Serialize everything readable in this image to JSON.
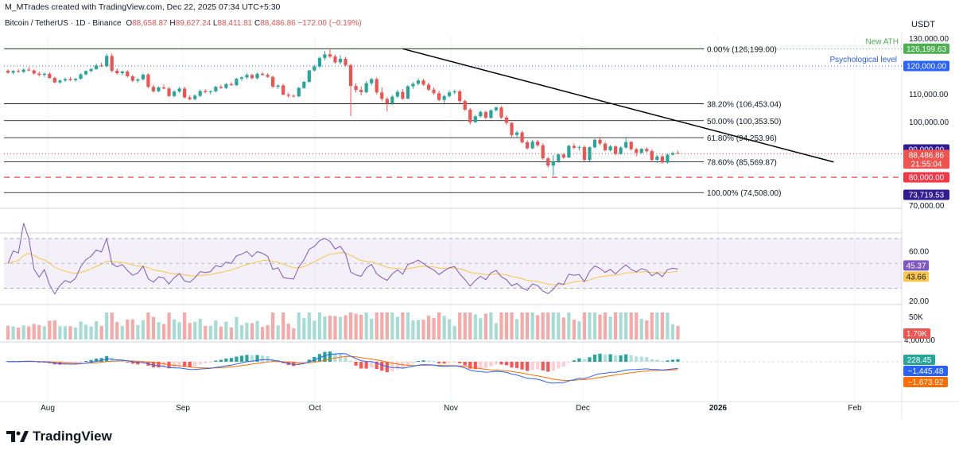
{
  "header": {
    "credit": "M_MTrades created with TradingView.com, Dec 22, 2025 07:34 UTC+5:30",
    "symbol": "Bitcoin / TetherUS · 1D · Binance",
    "ohlc": [
      {
        "k": "O",
        "v": "88,658.87"
      },
      {
        "k": "H",
        "v": "89,627.24"
      },
      {
        "k": "L",
        "v": "88,411.81"
      },
      {
        "k": "C",
        "v": "88,486.86"
      },
      {
        "k": "",
        "v": "−172.00 (−0.19%)"
      }
    ],
    "currency": "USDT"
  },
  "brand": {
    "name": "TradingView",
    "icon": "tradingview-logo-icon"
  },
  "colors": {
    "up": "#26a69a",
    "down": "#ef5350",
    "fib": "#000000",
    "ath": "#4caf50",
    "psych": "#2962ff",
    "red_level": "#f23645",
    "rsi": "#7e57c2",
    "rsi_ma": "#f7c548",
    "macd": "#2962ff",
    "signal": "#ff6d00",
    "vol_up": "#a7dcd5",
    "vol_down": "#f7a9a7",
    "badge_purple": "#311b92"
  },
  "chart_data": {
    "type": "candlestick",
    "price_axis": {
      "min": 70000,
      "max": 130000,
      "ticks": [
        "130,000.00",
        "110,000.00",
        "100,000.00",
        "70,000.00"
      ],
      "unit": "USDT"
    },
    "time_axis": {
      "labels": [
        "Aug",
        "Sep",
        "Oct",
        "Nov",
        "Dec",
        "2026",
        "Feb"
      ],
      "highlighted": "2026"
    },
    "last_close": 88486.86,
    "countdown": "21:55:04",
    "fibonacci": [
      {
        "label": "0.00% (126,199.00)",
        "value": 126199
      },
      {
        "label": "38.20% (106,453.04)",
        "value": 106453.04
      },
      {
        "label": "50.00% (100,353.50)",
        "value": 100353.5
      },
      {
        "label": "61.80% (94,253.96)",
        "value": 94253.96
      },
      {
        "label": "78.60% (85,569.87)",
        "value": 85569.87
      },
      {
        "label": "100.00% (74,508.00)",
        "value": 74508
      }
    ],
    "levels": [
      {
        "name": "New ATH",
        "value": 126199.63,
        "badge": "126,199.63",
        "color": "#4caf50"
      },
      {
        "name": "Psychological level",
        "value": 120000,
        "badge": "120,000.00",
        "color": "#2962ff"
      },
      {
        "name": "",
        "value": 90000,
        "badge": "90,000.00",
        "color": "#311b92"
      },
      {
        "name": "",
        "value": 80000,
        "badge": "80,000.00",
        "color": "#f23645"
      },
      {
        "name": "",
        "value": 73719.53,
        "badge": "73,719.53",
        "color": "#311b92"
      }
    ],
    "price_badge": "88,486.86",
    "trendline": {
      "from": {
        "date": "2025-10-06",
        "price": 126199
      },
      "to": {
        "date": "2025-12-28",
        "price": 85500
      }
    },
    "rsi": {
      "ticks": [
        "60.00",
        "20.00"
      ],
      "value": 45.37,
      "value_label": "45.37",
      "ma": 43.66,
      "ma_label": "43.66",
      "band": [
        30,
        70
      ]
    },
    "volume": {
      "ticks": [
        "50K",
        "4,000.00"
      ],
      "badge": "1.79K"
    },
    "macd": {
      "histogram_label": "228.45",
      "macd_label": "−1,445.48",
      "signal_label": "−1,673.92"
    },
    "ohlc_daily": [
      [
        118300,
        118800,
        117200,
        117600
      ],
      [
        117600,
        118500,
        117000,
        118200
      ],
      [
        118200,
        118900,
        117600,
        117900
      ],
      [
        117900,
        119200,
        117500,
        118700
      ],
      [
        118700,
        119600,
        118100,
        118400
      ],
      [
        118400,
        118800,
        116900,
        117300
      ],
      [
        117300,
        117900,
        116200,
        116800
      ],
      [
        116800,
        117600,
        116100,
        117200
      ],
      [
        117200,
        117800,
        115400,
        115700
      ],
      [
        115700,
        116200,
        113800,
        114100
      ],
      [
        114100,
        115100,
        113600,
        114800
      ],
      [
        114800,
        115800,
        114300,
        115300
      ],
      [
        115300,
        116100,
        114600,
        114900
      ],
      [
        114900,
        115700,
        114400,
        115400
      ],
      [
        115400,
        117400,
        115100,
        117000
      ],
      [
        117000,
        118400,
        116600,
        118200
      ],
      [
        118200,
        119300,
        117800,
        118900
      ],
      [
        118900,
        120900,
        118500,
        120200
      ],
      [
        120200,
        121200,
        119600,
        119900
      ],
      [
        119900,
        124400,
        119600,
        123600
      ],
      [
        123600,
        124500,
        117700,
        118300
      ],
      [
        118300,
        119100,
        116900,
        117400
      ],
      [
        117400,
        118300,
        116700,
        118000
      ],
      [
        118000,
        118500,
        115900,
        116300
      ],
      [
        116300,
        116800,
        114200,
        114700
      ],
      [
        114700,
        115600,
        113900,
        115200
      ],
      [
        115200,
        117300,
        114800,
        116900
      ],
      [
        116900,
        117400,
        112000,
        112500
      ],
      [
        112500,
        113300,
        110400,
        110900
      ],
      [
        110900,
        112700,
        110600,
        112300
      ],
      [
        112300,
        113400,
        111600,
        111900
      ],
      [
        111900,
        112400,
        108900,
        109200
      ],
      [
        109200,
        111300,
        108800,
        110800
      ],
      [
        110800,
        112400,
        110300,
        111900
      ],
      [
        111900,
        112600,
        108300,
        108700
      ],
      [
        108700,
        109500,
        107600,
        108100
      ],
      [
        108100,
        109800,
        107700,
        109300
      ],
      [
        109300,
        111500,
        108900,
        111000
      ],
      [
        111000,
        111700,
        110200,
        110600
      ],
      [
        110600,
        111300,
        109800,
        110900
      ],
      [
        110900,
        112900,
        110500,
        112500
      ],
      [
        112500,
        113200,
        111800,
        112100
      ],
      [
        112100,
        113900,
        111700,
        113500
      ],
      [
        113500,
        114200,
        112900,
        113100
      ],
      [
        113100,
        115800,
        112800,
        115400
      ],
      [
        115400,
        116400,
        114700,
        115900
      ],
      [
        115900,
        117400,
        115300,
        116800
      ],
      [
        116800,
        117200,
        115200,
        115600
      ],
      [
        115600,
        117600,
        115200,
        117200
      ],
      [
        117200,
        117800,
        116400,
        116800
      ],
      [
        116800,
        117400,
        115700,
        116100
      ],
      [
        116100,
        116500,
        112100,
        112600
      ],
      [
        112600,
        113400,
        111800,
        113000
      ],
      [
        113000,
        113600,
        109400,
        109700
      ],
      [
        109700,
        110400,
        108600,
        109300
      ],
      [
        109300,
        109800,
        108700,
        109100
      ],
      [
        109100,
        112500,
        108800,
        112100
      ],
      [
        112100,
        114600,
        111800,
        114300
      ],
      [
        114300,
        118700,
        114000,
        118400
      ],
      [
        118400,
        120500,
        118000,
        119800
      ],
      [
        119800,
        123400,
        119300,
        122900
      ],
      [
        122900,
        125400,
        122100,
        124200
      ],
      [
        124200,
        126199,
        122800,
        123400
      ],
      [
        123400,
        124100,
        120800,
        121300
      ],
      [
        121300,
        123800,
        120600,
        122600
      ],
      [
        122600,
        123300,
        119900,
        120300
      ],
      [
        120300,
        120900,
        102000,
        112800
      ],
      [
        112800,
        113800,
        110400,
        111400
      ],
      [
        111400,
        112600,
        109400,
        110600
      ],
      [
        110600,
        114700,
        110200,
        113800
      ],
      [
        113800,
        115700,
        113000,
        115300
      ],
      [
        115300,
        115900,
        109800,
        110500
      ],
      [
        110500,
        112400,
        107300,
        108200
      ],
      [
        108200,
        108800,
        103600,
        106500
      ],
      [
        106500,
        109600,
        106000,
        109000
      ],
      [
        109000,
        111400,
        108500,
        110700
      ],
      [
        110700,
        111700,
        107800,
        108300
      ],
      [
        108300,
        113200,
        108000,
        112700
      ],
      [
        112700,
        114200,
        111800,
        113600
      ],
      [
        113600,
        115600,
        113100,
        114800
      ],
      [
        114800,
        115400,
        112900,
        113300
      ],
      [
        113300,
        114100,
        111000,
        111500
      ],
      [
        111500,
        112300,
        109600,
        110200
      ],
      [
        110200,
        111100,
        107300,
        107800
      ],
      [
        107800,
        109600,
        106600,
        109200
      ],
      [
        109200,
        111200,
        108700,
        110500
      ],
      [
        110500,
        111400,
        109900,
        110900
      ],
      [
        110900,
        111500,
        106500,
        107400
      ],
      [
        107400,
        107900,
        103900,
        104300
      ],
      [
        104300,
        104900,
        99000,
        99800
      ],
      [
        99800,
        102500,
        99500,
        101900
      ],
      [
        101900,
        104000,
        101500,
        103500
      ],
      [
        103500,
        103900,
        100800,
        101400
      ],
      [
        101400,
        104400,
        101000,
        104100
      ],
      [
        104100,
        105400,
        103600,
        105100
      ],
      [
        105100,
        105600,
        100900,
        101500
      ],
      [
        101500,
        102200,
        98900,
        99600
      ],
      [
        99600,
        99800,
        94500,
        95200
      ],
      [
        95200,
        96700,
        94500,
        96100
      ],
      [
        96100,
        96700,
        92200,
        92600
      ],
      [
        92600,
        93300,
        89900,
        90400
      ],
      [
        90400,
        93500,
        90100,
        92800
      ],
      [
        92800,
        93500,
        90900,
        91500
      ],
      [
        91500,
        92200,
        86300,
        86800
      ],
      [
        86800,
        87300,
        83500,
        84200
      ],
      [
        84200,
        88000,
        80600,
        85800
      ],
      [
        85800,
        88600,
        85200,
        88200
      ],
      [
        88200,
        88700,
        86500,
        87100
      ],
      [
        87100,
        91700,
        86900,
        91300
      ],
      [
        91300,
        92100,
        90100,
        90600
      ],
      [
        90600,
        91400,
        89600,
        90900
      ],
      [
        90900,
        91500,
        85700,
        86300
      ],
      [
        86300,
        91100,
        85700,
        90800
      ],
      [
        90800,
        93900,
        90400,
        93500
      ],
      [
        93500,
        94200,
        91500,
        92100
      ],
      [
        92100,
        92700,
        89300,
        89700
      ],
      [
        89700,
        91600,
        89200,
        91100
      ],
      [
        91100,
        91500,
        87900,
        88400
      ],
      [
        88400,
        91200,
        88100,
        90700
      ],
      [
        90700,
        94600,
        90300,
        92700
      ],
      [
        92700,
        93100,
        89600,
        90100
      ],
      [
        90100,
        90600,
        87600,
        88800
      ],
      [
        88800,
        90500,
        88400,
        90200
      ],
      [
        90200,
        90800,
        88900,
        89400
      ],
      [
        89400,
        90100,
        85400,
        86300
      ],
      [
        86300,
        88000,
        85100,
        87500
      ],
      [
        87500,
        88200,
        84900,
        85300
      ],
      [
        85300,
        88600,
        84900,
        88100
      ],
      [
        88100,
        89200,
        87800,
        88700
      ],
      [
        88700,
        89600,
        88400,
        88500
      ]
    ]
  }
}
